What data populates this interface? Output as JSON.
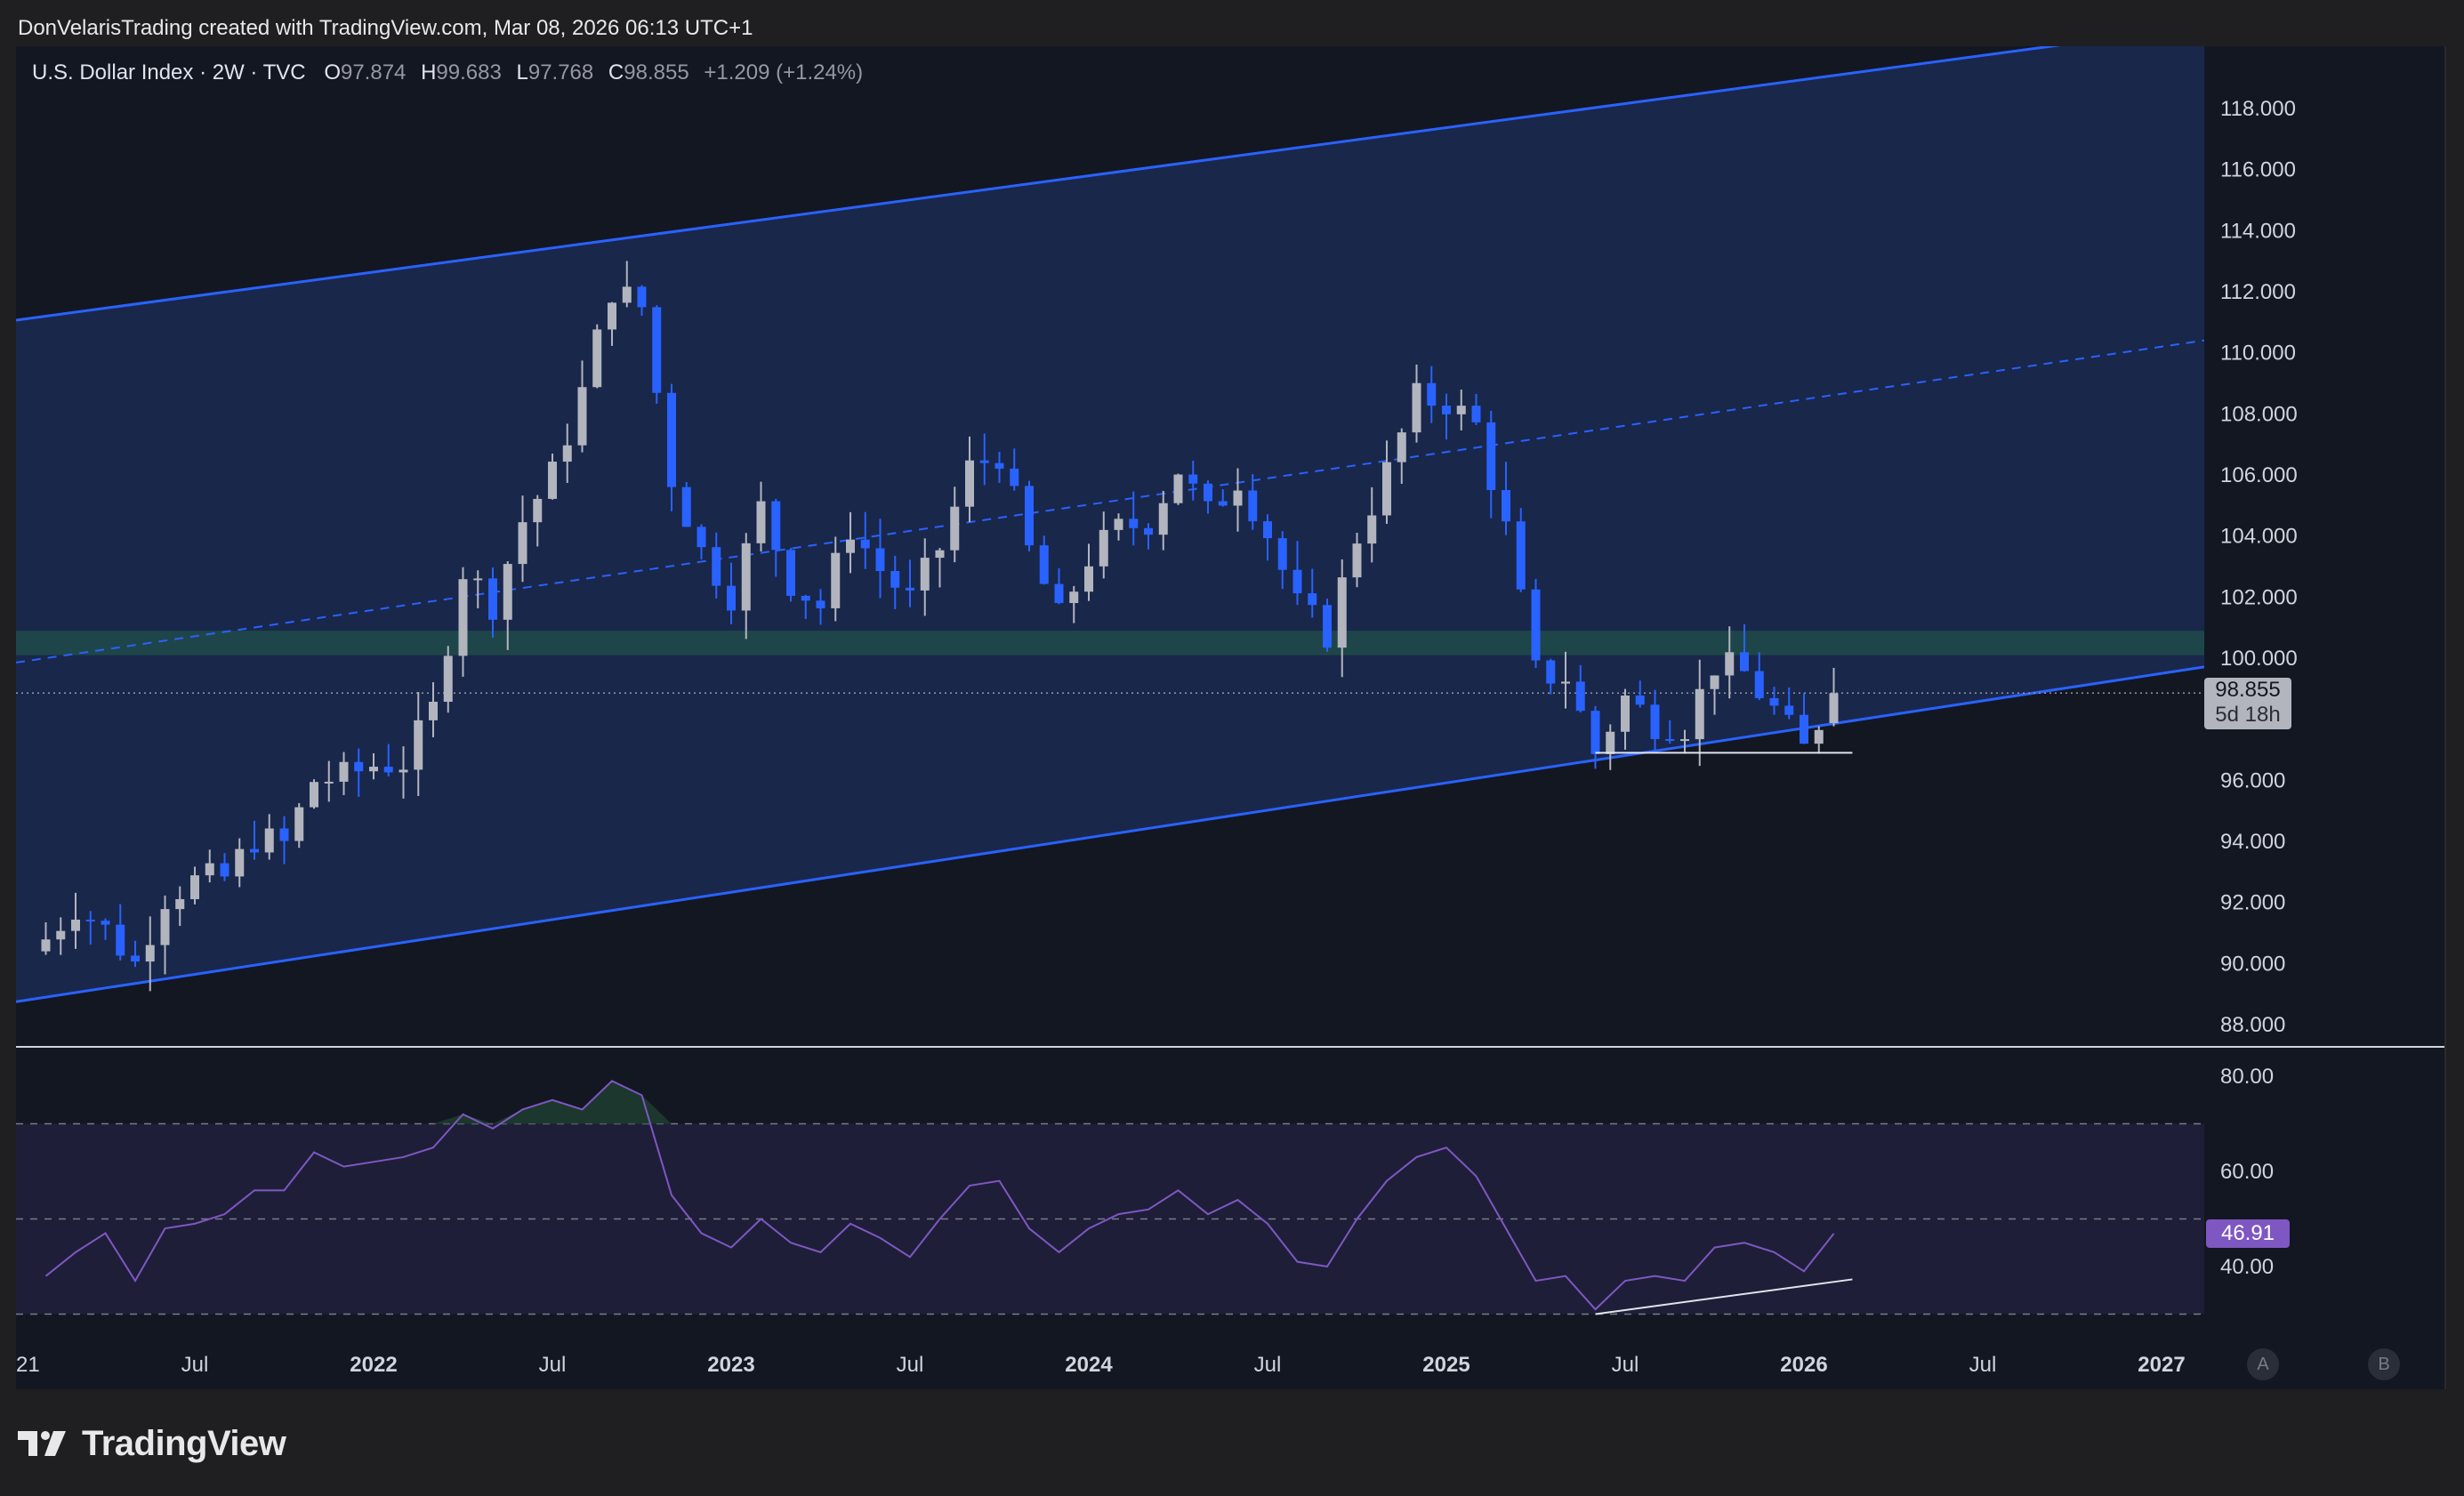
{
  "header": {
    "attribution": "DonVelarisTrading created with TradingView.com, Mar 08, 2026 06:13 UTC+1"
  },
  "legend": {
    "symbol": "U.S. Dollar Index · 2W · TVC",
    "open_label": "O",
    "open": "97.874",
    "high_label": "H",
    "high": "99.683",
    "low_label": "L",
    "low": "97.768",
    "close_label": "C",
    "close": "98.855",
    "change": "+1.209 (+1.24%)"
  },
  "price_tag": {
    "price": "98.855",
    "countdown": "5d 18h"
  },
  "rsi_tag": {
    "value": "46.91"
  },
  "buttons": {
    "a": "A",
    "b": "B"
  },
  "footer": {
    "brand": "TradingView"
  },
  "colors": {
    "background": "#131722",
    "channel_fill": "#1b2a52",
    "channel_line": "#2962ff",
    "support_zone": "#1f4a4a",
    "candle_up": "#b2b5be",
    "candle_down": "#2962ff",
    "rsi_line": "#7e57c2",
    "rsi_band": "#1e1e38"
  },
  "chart_data": [
    {
      "type": "candlestick",
      "title": "U.S. Dollar Index · 2W · TVC",
      "ylim": [
        87,
        120
      ],
      "y_ticks": [
        "118.000",
        "116.000",
        "114.000",
        "112.000",
        "110.000",
        "108.000",
        "106.000",
        "104.000",
        "102.000",
        "100.000",
        "96.000",
        "94.000",
        "92.000",
        "90.000",
        "88.000"
      ],
      "x_ticks": [
        "21",
        "Jul",
        "2022",
        "Jul",
        "2023",
        "Jul",
        "2024",
        "Jul",
        "2025",
        "Jul",
        "2026",
        "Jul",
        "2027"
      ],
      "last_price": 98.855,
      "support_zone": [
        100.1,
        100.9
      ],
      "channel": {
        "upper": [
          [
            "2021-02-01",
            111.2
          ],
          [
            "2026-09-01",
            120.0
          ]
        ],
        "lower": [
          [
            "2021-02-01",
            88.9
          ],
          [
            "2027-01-01",
            99.5
          ]
        ],
        "mid": [
          [
            "2021-02-01",
            100.0
          ],
          [
            "2027-01-01",
            110.2
          ]
        ]
      },
      "bottom_support": [
        [
          "2025-06-01",
          96.9
        ],
        [
          "2026-02-20",
          96.9
        ]
      ],
      "close_series": [
        {
          "date": "2021-02",
          "close": 90.8
        },
        {
          "date": "2021-03",
          "close": 91.9
        },
        {
          "date": "2021-04",
          "close": 91.1
        },
        {
          "date": "2021-05",
          "close": 90.0
        },
        {
          "date": "2021-06",
          "close": 92.2
        },
        {
          "date": "2021-07",
          "close": 92.7
        },
        {
          "date": "2021-08",
          "close": 92.8
        },
        {
          "date": "2021-09",
          "close": 94.1
        },
        {
          "date": "2021-10",
          "close": 93.9
        },
        {
          "date": "2021-11",
          "close": 96.0
        },
        {
          "date": "2021-12",
          "close": 96.1
        },
        {
          "date": "2022-01",
          "close": 96.5
        },
        {
          "date": "2022-02",
          "close": 96.6
        },
        {
          "date": "2022-03",
          "close": 98.3
        },
        {
          "date": "2022-04",
          "close": 102.9
        },
        {
          "date": "2022-05",
          "close": 101.8
        },
        {
          "date": "2022-06",
          "close": 104.5
        },
        {
          "date": "2022-07",
          "close": 106.0
        },
        {
          "date": "2022-08",
          "close": 108.7
        },
        {
          "date": "2022-09",
          "close": 112.1
        },
        {
          "date": "2022-10",
          "close": 111.5
        },
        {
          "date": "2022-11",
          "close": 105.9
        },
        {
          "date": "2022-12",
          "close": 103.5
        },
        {
          "date": "2023-01",
          "close": 102.1
        },
        {
          "date": "2023-02",
          "close": 104.9
        },
        {
          "date": "2023-03",
          "close": 102.5
        },
        {
          "date": "2023-04",
          "close": 101.7
        },
        {
          "date": "2023-05",
          "close": 104.3
        },
        {
          "date": "2023-06",
          "close": 102.9
        },
        {
          "date": "2023-07",
          "close": 101.9
        },
        {
          "date": "2023-08",
          "close": 103.6
        },
        {
          "date": "2023-09",
          "close": 106.2
        },
        {
          "date": "2023-10",
          "close": 106.7
        },
        {
          "date": "2023-11",
          "close": 103.5
        },
        {
          "date": "2023-12",
          "close": 101.3
        },
        {
          "date": "2024-01",
          "close": 103.3
        },
        {
          "date": "2024-02",
          "close": 104.2
        },
        {
          "date": "2024-03",
          "close": 104.5
        },
        {
          "date": "2024-04",
          "close": 106.2
        },
        {
          "date": "2024-05",
          "close": 104.7
        },
        {
          "date": "2024-06",
          "close": 105.9
        },
        {
          "date": "2024-07",
          "close": 104.1
        },
        {
          "date": "2024-08",
          "close": 101.7
        },
        {
          "date": "2024-09",
          "close": 100.8
        },
        {
          "date": "2024-10",
          "close": 104.0
        },
        {
          "date": "2024-11",
          "close": 106.1
        },
        {
          "date": "2024-12",
          "close": 108.5
        },
        {
          "date": "2025-01",
          "close": 108.4
        },
        {
          "date": "2025-02",
          "close": 107.6
        },
        {
          "date": "2025-03",
          "close": 104.2
        },
        {
          "date": "2025-04",
          "close": 99.5
        },
        {
          "date": "2025-05",
          "close": 99.4
        },
        {
          "date": "2025-06",
          "close": 96.9
        },
        {
          "date": "2025-07",
          "close": 98.7
        },
        {
          "date": "2025-08",
          "close": 97.9
        },
        {
          "date": "2025-09",
          "close": 97.8
        },
        {
          "date": "2025-10",
          "close": 99.8
        },
        {
          "date": "2025-11",
          "close": 99.5
        },
        {
          "date": "2025-12",
          "close": 98.3
        },
        {
          "date": "2026-01",
          "close": 97.0
        },
        {
          "date": "2026-02",
          "close": 98.855
        }
      ]
    },
    {
      "type": "line",
      "title": "RSI",
      "ylim": [
        27,
        85
      ],
      "y_ticks": [
        "80.00",
        "60.00",
        "40.00"
      ],
      "bands": {
        "upper": 70,
        "middle": 50,
        "lower": 30
      },
      "last_value": 46.91,
      "divergence_line": [
        [
          "2025-06-01",
          30.0
        ],
        [
          "2026-02-20",
          37.3
        ]
      ],
      "series": [
        {
          "date": "2021-02",
          "rsi": 38
        },
        {
          "date": "2021-03",
          "rsi": 43
        },
        {
          "date": "2021-04",
          "rsi": 47
        },
        {
          "date": "2021-05",
          "rsi": 37
        },
        {
          "date": "2021-06",
          "rsi": 48
        },
        {
          "date": "2021-07",
          "rsi": 49
        },
        {
          "date": "2021-08",
          "rsi": 51
        },
        {
          "date": "2021-09",
          "rsi": 56
        },
        {
          "date": "2021-10",
          "rsi": 56
        },
        {
          "date": "2021-11",
          "rsi": 64
        },
        {
          "date": "2021-12",
          "rsi": 61
        },
        {
          "date": "2022-01",
          "rsi": 62
        },
        {
          "date": "2022-02",
          "rsi": 63
        },
        {
          "date": "2022-03",
          "rsi": 65
        },
        {
          "date": "2022-04",
          "rsi": 72
        },
        {
          "date": "2022-05",
          "rsi": 69
        },
        {
          "date": "2022-06",
          "rsi": 73
        },
        {
          "date": "2022-07",
          "rsi": 75
        },
        {
          "date": "2022-08",
          "rsi": 73
        },
        {
          "date": "2022-09",
          "rsi": 79
        },
        {
          "date": "2022-10",
          "rsi": 76
        },
        {
          "date": "2022-11",
          "rsi": 55
        },
        {
          "date": "2022-12",
          "rsi": 47
        },
        {
          "date": "2023-01",
          "rsi": 44
        },
        {
          "date": "2023-02",
          "rsi": 50
        },
        {
          "date": "2023-03",
          "rsi": 45
        },
        {
          "date": "2023-04",
          "rsi": 43
        },
        {
          "date": "2023-05",
          "rsi": 49
        },
        {
          "date": "2023-06",
          "rsi": 46
        },
        {
          "date": "2023-07",
          "rsi": 42
        },
        {
          "date": "2023-08",
          "rsi": 50
        },
        {
          "date": "2023-09",
          "rsi": 57
        },
        {
          "date": "2023-10",
          "rsi": 58
        },
        {
          "date": "2023-11",
          "rsi": 48
        },
        {
          "date": "2023-12",
          "rsi": 43
        },
        {
          "date": "2024-01",
          "rsi": 48
        },
        {
          "date": "2024-02",
          "rsi": 51
        },
        {
          "date": "2024-03",
          "rsi": 52
        },
        {
          "date": "2024-04",
          "rsi": 56
        },
        {
          "date": "2024-05",
          "rsi": 51
        },
        {
          "date": "2024-06",
          "rsi": 54
        },
        {
          "date": "2024-07",
          "rsi": 49
        },
        {
          "date": "2024-08",
          "rsi": 41
        },
        {
          "date": "2024-09",
          "rsi": 40
        },
        {
          "date": "2024-10",
          "rsi": 50
        },
        {
          "date": "2024-11",
          "rsi": 58
        },
        {
          "date": "2024-12",
          "rsi": 63
        },
        {
          "date": "2025-01",
          "rsi": 65
        },
        {
          "date": "2025-02",
          "rsi": 59
        },
        {
          "date": "2025-03",
          "rsi": 48
        },
        {
          "date": "2025-04",
          "rsi": 37
        },
        {
          "date": "2025-05",
          "rsi": 38
        },
        {
          "date": "2025-06",
          "rsi": 31
        },
        {
          "date": "2025-07",
          "rsi": 37
        },
        {
          "date": "2025-08",
          "rsi": 38
        },
        {
          "date": "2025-09",
          "rsi": 37
        },
        {
          "date": "2025-10",
          "rsi": 44
        },
        {
          "date": "2025-11",
          "rsi": 45
        },
        {
          "date": "2025-12",
          "rsi": 43
        },
        {
          "date": "2026-01",
          "rsi": 39
        },
        {
          "date": "2026-02",
          "rsi": 46.91
        }
      ]
    }
  ]
}
